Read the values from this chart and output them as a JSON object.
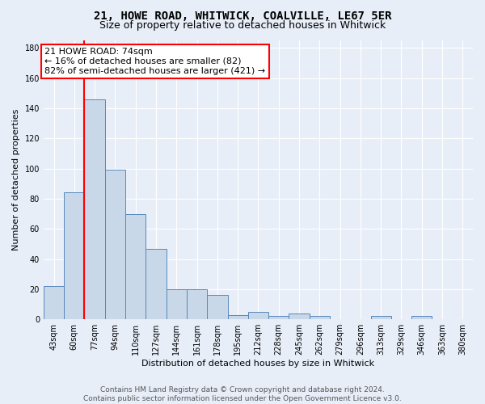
{
  "title": "21, HOWE ROAD, WHITWICK, COALVILLE, LE67 5ER",
  "subtitle": "Size of property relative to detached houses in Whitwick",
  "xlabel": "Distribution of detached houses by size in Whitwick",
  "ylabel": "Number of detached properties",
  "bin_labels": [
    "43sqm",
    "60sqm",
    "77sqm",
    "94sqm",
    "110sqm",
    "127sqm",
    "144sqm",
    "161sqm",
    "178sqm",
    "195sqm",
    "212sqm",
    "228sqm",
    "245sqm",
    "262sqm",
    "279sqm",
    "296sqm",
    "313sqm",
    "329sqm",
    "346sqm",
    "363sqm",
    "380sqm"
  ],
  "bar_heights": [
    22,
    84,
    146,
    99,
    70,
    47,
    20,
    20,
    16,
    3,
    5,
    2,
    4,
    2,
    0,
    0,
    2,
    0,
    2,
    0,
    0
  ],
  "bar_color": "#c8d8e8",
  "bar_edge_color": "#5588bb",
  "red_line_bar_index": 2,
  "annotation_text": "21 HOWE ROAD: 74sqm\n← 16% of detached houses are smaller (82)\n82% of semi-detached houses are larger (421) →",
  "annotation_box_color": "white",
  "annotation_box_edge_color": "red",
  "red_line_color": "red",
  "ylim": [
    0,
    185
  ],
  "yticks": [
    0,
    20,
    40,
    60,
    80,
    100,
    120,
    140,
    160,
    180
  ],
  "footer_text": "Contains HM Land Registry data © Crown copyright and database right 2024.\nContains public sector information licensed under the Open Government Licence v3.0.",
  "background_color": "#e8eef8",
  "plot_bg_color": "#e8eef8",
  "title_fontsize": 10,
  "subtitle_fontsize": 9,
  "axis_label_fontsize": 8,
  "tick_fontsize": 7,
  "annotation_fontsize": 8,
  "footer_fontsize": 6.5,
  "grid_color": "white",
  "bar_linewidth": 0.7
}
